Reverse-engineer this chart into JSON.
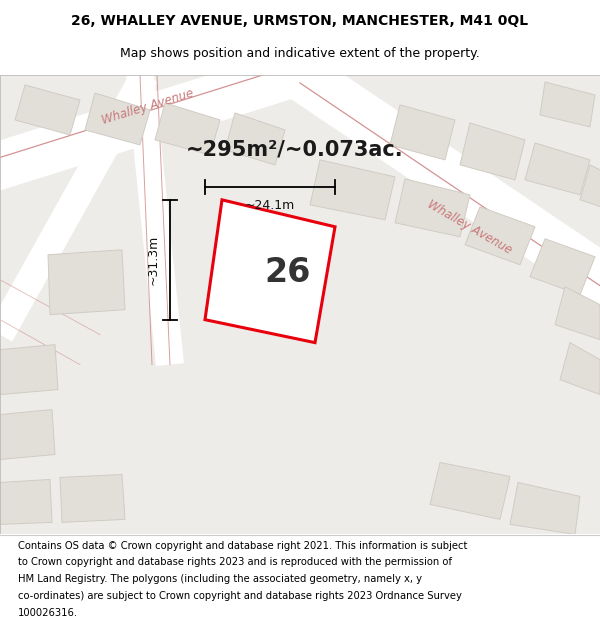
{
  "title_line1": "26, WHALLEY AVENUE, URMSTON, MANCHESTER, M41 0QL",
  "title_line2": "Map shows position and indicative extent of the property.",
  "area_text": "~295m²/~0.073ac.",
  "plot_number": "26",
  "dim_width": "~24.1m",
  "dim_height": "~31.3m",
  "footer_lines": [
    "Contains OS data © Crown copyright and database right 2021. This information is subject",
    "to Crown copyright and database rights 2023 and is reproduced with the permission of",
    "HM Land Registry. The polygons (including the associated geometry, namely x, y",
    "co-ordinates) are subject to Crown copyright and database rights 2023 Ordnance Survey",
    "100026316."
  ],
  "map_bg": "#eeece8",
  "road_color": "#ffffff",
  "plot_outline_color": "#e8000d",
  "building_fill": "#e2dfd9",
  "building_edge": "#d0ccc4",
  "road_label_color": "#c87878",
  "title_fontsize": 10,
  "subtitle_fontsize": 9,
  "footer_fontsize": 7.2
}
